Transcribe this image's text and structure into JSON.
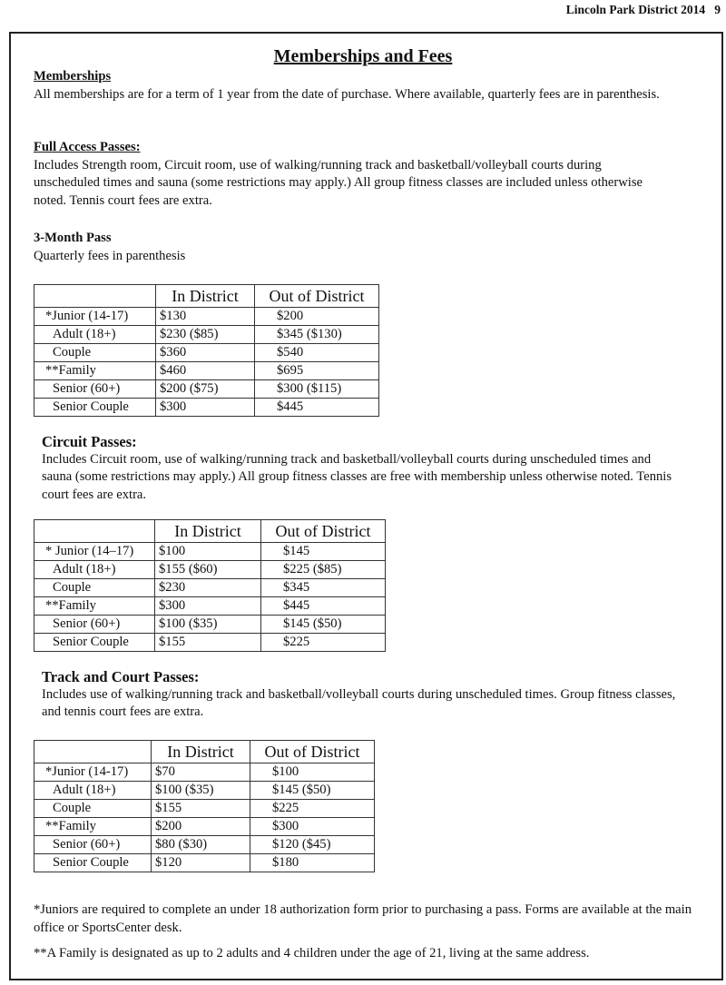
{
  "header": {
    "text": "Lincoln Park District 2014",
    "page_number": "9"
  },
  "title": "Memberships and Fees",
  "memberships": {
    "heading": "Memberships",
    "text": "All memberships are for a term of 1 year from the date of purchase.  Where available, quarterly fees are in parenthesis."
  },
  "full_access": {
    "heading": "Full Access Passes:",
    "text": "Includes Strength room, Circuit room, use of walking/running track and basketball/volleyball courts during unscheduled times and sauna (some restrictions may apply.)  All group fitness classes are included unless otherwise noted.  Tennis court fees are extra."
  },
  "three_month": {
    "heading": "3-Month Pass",
    "text": "Quarterly fees in parenthesis"
  },
  "circuit": {
    "heading": "Circuit Passes:",
    "text": "Includes Circuit room, use of walking/running track and basketball/volleyball courts during unscheduled times and sauna (some restrictions may apply.) All group fitness classes are free with membership unless otherwise noted. Tennis court fees are extra."
  },
  "track": {
    "heading": "Track and Court Passes:",
    "text": "Includes use of walking/running track and basketball/volleyball courts during unscheduled times.  Group fitness classes, and tennis court fees are extra."
  },
  "tables": [
    {
      "columns": [
        "",
        "In District",
        "Out of District"
      ],
      "rows": [
        [
          "*Junior (14-17)",
          "$130",
          "$200"
        ],
        [
          "Adult (18+)",
          "$230 ($85)",
          "$345 ($130)"
        ],
        [
          "Couple",
          "$360",
          "$540"
        ],
        [
          "**Family",
          "$460",
          "$695"
        ],
        [
          "Senior (60+)",
          "$200 ($75)",
          "$300 ($115)"
        ],
        [
          "Senior Couple",
          "$300",
          "$445"
        ]
      ]
    },
    {
      "columns": [
        "",
        "In District",
        "Out of District"
      ],
      "rows": [
        [
          "* Junior (14–17)",
          "$100",
          "$145"
        ],
        [
          "Adult (18+)",
          "$155 ($60)",
          "$225 ($85)"
        ],
        [
          "Couple",
          "$230",
          "$345"
        ],
        [
          "**Family",
          "$300",
          "$445"
        ],
        [
          "Senior (60+)",
          "$100 ($35)",
          "$145 ($50)"
        ],
        [
          "Senior Couple",
          "$155",
          "$225"
        ]
      ]
    },
    {
      "columns": [
        "",
        "In District",
        "Out of District"
      ],
      "rows": [
        [
          "*Junior (14-17)",
          "$70",
          "$100"
        ],
        [
          "Adult (18+)",
          "$100 ($35)",
          "$145 ($50)"
        ],
        [
          "Couple",
          "$155",
          "$225"
        ],
        [
          "**Family",
          "$200",
          "$300"
        ],
        [
          "Senior (60+)",
          "$80 ($30)",
          "$120 ($45)"
        ],
        [
          "Senior Couple",
          "$120",
          "$180"
        ]
      ]
    }
  ],
  "footnotes": [
    "*Juniors are required to complete an under 18 authorization form prior to purchasing a pass.  Forms are available at the main office or SportsCenter desk.",
    "**A Family is designated as up to 2 adults and 4 children under the age of 21, living at the same address."
  ]
}
